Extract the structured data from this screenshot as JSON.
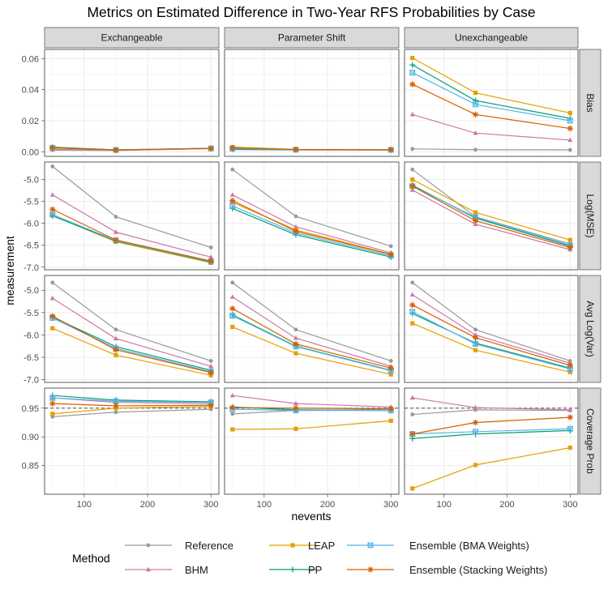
{
  "chart_data": {
    "type": "line",
    "title": "Metrics on Estimated Difference in Two-Year RFS Probabilities by Case",
    "xlabel": "nevents",
    "ylabel": "measurement",
    "x": [
      50,
      150,
      300
    ],
    "x_ticks": [
      "100",
      "200",
      "300"
    ],
    "columns": [
      "Exchangeable",
      "Parameter Shift",
      "Unexchangeable"
    ],
    "rows": [
      {
        "label": "Bias",
        "ylim": [
          -0.003,
          0.066
        ],
        "ticks": [
          {
            "v": 0.0,
            "label": "0.00"
          },
          {
            "v": 0.02,
            "label": "0.02"
          },
          {
            "v": 0.04,
            "label": "0.04"
          },
          {
            "v": 0.06,
            "label": "0.06"
          }
        ]
      },
      {
        "label": "Log(MSE)",
        "ylim": [
          -7.06,
          -4.6
        ],
        "ticks": [
          {
            "v": -5.0,
            "label": "-5.0"
          },
          {
            "v": -5.5,
            "label": "-5.5"
          },
          {
            "v": -6.0,
            "label": "-6.0"
          },
          {
            "v": -6.5,
            "label": "-6.5"
          },
          {
            "v": -7.0,
            "label": "-7.0"
          }
        ]
      },
      {
        "label": "Avg Log(Var)",
        "ylim": [
          -7.06,
          -4.67
        ],
        "ticks": [
          {
            "v": -5.0,
            "label": "-5.0"
          },
          {
            "v": -5.5,
            "label": "-5.5"
          },
          {
            "v": -6.0,
            "label": "-6.0"
          },
          {
            "v": -6.5,
            "label": "-6.5"
          },
          {
            "v": -7.0,
            "label": "-7.0"
          }
        ]
      },
      {
        "label": "Coverage Prob",
        "ylim": [
          0.8,
          0.985
        ],
        "ticks": [
          {
            "v": 0.85,
            "label": "0.85"
          },
          {
            "v": 0.9,
            "label": "0.90"
          },
          {
            "v": 0.95,
            "label": "0.95"
          }
        ],
        "reference_line": 0.95
      }
    ],
    "methods": [
      {
        "name": "Reference",
        "color": "#999999",
        "shape": "circle"
      },
      {
        "name": "BHM",
        "color": "#CC79A7",
        "shape": "triangle"
      },
      {
        "name": "LEAP",
        "color": "#E69F00",
        "shape": "square"
      },
      {
        "name": "PP",
        "color": "#009E73",
        "shape": "plus"
      },
      {
        "name": "Ensemble (BMA Weights)",
        "color": "#56B4E9",
        "shape": "boxcross"
      },
      {
        "name": "Ensemble (Stacking Weights)",
        "color": "#D55E00",
        "shape": "asterisk"
      }
    ],
    "legend": {
      "title": "Method",
      "position": "bottom"
    },
    "grid": true,
    "values": {
      "Bias": {
        "Exchangeable": {
          "Reference": [
            0.001,
            0.0008,
            0.002
          ],
          "BHM": [
            0.0015,
            0.001,
            0.002
          ],
          "LEAP": [
            0.003,
            0.0012,
            0.0022
          ],
          "PP": [
            0.0028,
            0.0012,
            0.0022
          ],
          "Ensemble (BMA Weights)": [
            0.0025,
            0.0011,
            0.0021
          ],
          "Ensemble (Stacking Weights)": [
            0.0025,
            0.0011,
            0.0021
          ]
        },
        "Parameter Shift": {
          "Reference": [
            0.0015,
            0.0012,
            0.0012
          ],
          "BHM": [
            0.0018,
            0.0013,
            0.0013
          ],
          "LEAP": [
            0.003,
            0.0015,
            0.0014
          ],
          "PP": [
            0.0015,
            0.0012,
            0.0011
          ],
          "Ensemble (BMA Weights)": [
            0.002,
            0.0013,
            0.0012
          ],
          "Ensemble (Stacking Weights)": [
            0.0025,
            0.0014,
            0.0013
          ]
        },
        "Unexchangeable": {
          "Reference": [
            0.0018,
            0.0013,
            0.0012
          ],
          "BHM": [
            0.024,
            0.012,
            0.0075
          ],
          "LEAP": [
            0.0605,
            0.038,
            0.025
          ],
          "PP": [
            0.056,
            0.033,
            0.0215
          ],
          "Ensemble (BMA Weights)": [
            0.051,
            0.0305,
            0.02
          ],
          "Ensemble (Stacking Weights)": [
            0.0435,
            0.024,
            0.015
          ]
        }
      },
      "Log(MSE)": {
        "Exchangeable": {
          "Reference": [
            -4.7,
            -5.85,
            -6.55
          ],
          "BHM": [
            -5.35,
            -6.2,
            -6.77
          ],
          "LEAP": [
            -5.82,
            -6.42,
            -6.9
          ],
          "PP": [
            -5.83,
            -6.4,
            -6.88
          ],
          "Ensemble (BMA Weights)": [
            -5.8,
            -6.39,
            -6.87
          ],
          "Ensemble (Stacking Weights)": [
            -5.68,
            -6.38,
            -6.86
          ]
        },
        "Parameter Shift": {
          "Reference": [
            -4.77,
            -5.84,
            -6.52
          ],
          "BHM": [
            -5.35,
            -6.08,
            -6.67
          ],
          "LEAP": [
            -5.52,
            -6.15,
            -6.7
          ],
          "PP": [
            -5.66,
            -6.26,
            -6.77
          ],
          "Ensemble (BMA Weights)": [
            -5.6,
            -6.22,
            -6.74
          ],
          "Ensemble (Stacking Weights)": [
            -5.48,
            -6.18,
            -6.71
          ]
        },
        "Unexchangeable": {
          "Reference": [
            -4.77,
            -5.85,
            -6.47
          ],
          "BHM": [
            -5.24,
            -6.02,
            -6.6
          ],
          "LEAP": [
            -5.0,
            -5.75,
            -6.38
          ],
          "PP": [
            -5.13,
            -5.88,
            -6.52
          ],
          "Ensemble (BMA Weights)": [
            -5.15,
            -5.86,
            -6.5
          ],
          "Ensemble (Stacking Weights)": [
            -5.15,
            -5.94,
            -6.55
          ]
        }
      },
      "Avg Log(Var)": {
        "Exchangeable": {
          "Reference": [
            -4.83,
            -5.88,
            -6.58
          ],
          "BHM": [
            -5.18,
            -6.08,
            -6.7
          ],
          "LEAP": [
            -5.85,
            -6.45,
            -6.9
          ],
          "PP": [
            -5.6,
            -6.26,
            -6.79
          ],
          "Ensemble (BMA Weights)": [
            -5.62,
            -6.3,
            -6.82
          ],
          "Ensemble (Stacking Weights)": [
            -5.58,
            -6.33,
            -6.84
          ]
        },
        "Parameter Shift": {
          "Reference": [
            -4.83,
            -5.88,
            -6.58
          ],
          "BHM": [
            -5.15,
            -6.07,
            -6.7
          ],
          "LEAP": [
            -5.82,
            -6.41,
            -6.88
          ],
          "PP": [
            -5.55,
            -6.25,
            -6.79
          ],
          "Ensemble (BMA Weights)": [
            -5.57,
            -6.26,
            -6.8
          ],
          "Ensemble (Stacking Weights)": [
            -5.41,
            -6.2,
            -6.74
          ]
        },
        "Unexchangeable": {
          "Reference": [
            -4.83,
            -5.88,
            -6.58
          ],
          "BHM": [
            -5.1,
            -6.0,
            -6.63
          ],
          "LEAP": [
            -5.74,
            -6.34,
            -6.83
          ],
          "PP": [
            -5.52,
            -6.18,
            -6.74
          ],
          "Ensemble (BMA Weights)": [
            -5.48,
            -6.2,
            -6.76
          ],
          "Ensemble (Stacking Weights)": [
            -5.33,
            -6.06,
            -6.68
          ]
        }
      },
      "Coverage Prob": {
        "Exchangeable": {
          "Reference": [
            0.935,
            0.943,
            0.948
          ],
          "BHM": [
            0.968,
            0.96,
            0.958
          ],
          "LEAP": [
            0.94,
            0.95,
            0.953
          ],
          "PP": [
            0.972,
            0.964,
            0.961
          ],
          "Ensemble (BMA Weights)": [
            0.968,
            0.962,
            0.96
          ],
          "Ensemble (Stacking Weights)": [
            0.958,
            0.954,
            0.955
          ]
        },
        "Parameter Shift": {
          "Reference": [
            0.94,
            0.946,
            0.948
          ],
          "BHM": [
            0.972,
            0.958,
            0.952
          ],
          "LEAP": [
            0.913,
            0.914,
            0.928
          ],
          "PP": [
            0.952,
            0.947,
            0.946
          ],
          "Ensemble (BMA Weights)": [
            0.948,
            0.946,
            0.946
          ],
          "Ensemble (Stacking Weights)": [
            0.951,
            0.95,
            0.949
          ]
        },
        "Unexchangeable": {
          "Reference": [
            0.939,
            0.947,
            0.946
          ],
          "BHM": [
            0.968,
            0.951,
            0.947
          ],
          "LEAP": [
            0.81,
            0.851,
            0.881
          ],
          "PP": [
            0.897,
            0.905,
            0.911
          ],
          "Ensemble (BMA Weights)": [
            0.905,
            0.909,
            0.914
          ],
          "Ensemble (Stacking Weights)": [
            0.905,
            0.925,
            0.934
          ]
        }
      }
    }
  }
}
